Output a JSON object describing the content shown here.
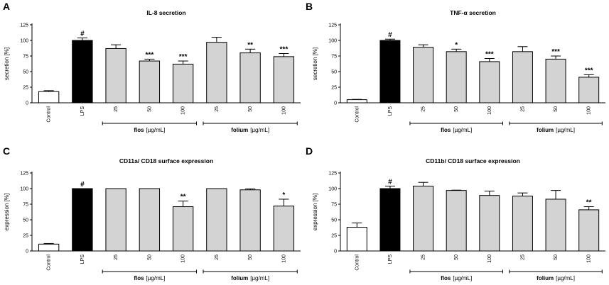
{
  "chart_data": [
    {
      "type": "bar",
      "panel_label": "A",
      "title": "IL-8 secretion",
      "ylabel": "secretion [%]",
      "ylim": [
        0,
        125
      ],
      "yticks": [
        "0",
        "25",
        "50",
        "75",
        "100",
        "125"
      ],
      "categories": [
        "Control",
        "LPS",
        "25",
        "50",
        "100",
        "25",
        "50",
        "100"
      ],
      "values": [
        18,
        100,
        87,
        67,
        62,
        97,
        80,
        74
      ],
      "errors": [
        1.5,
        4,
        6,
        3,
        5,
        8,
        6,
        5
      ],
      "colors": [
        "#ffffff",
        "#000000",
        "#d3d3d3",
        "#d3d3d3",
        "#d3d3d3",
        "#d3d3d3",
        "#d3d3d3",
        "#d3d3d3"
      ],
      "annotations": [
        "",
        "#",
        "",
        "***",
        "***",
        "",
        "**",
        "***"
      ],
      "groups": [
        {
          "name": "flos",
          "unit": "[µg/mL]"
        },
        {
          "name": "folium",
          "unit": "[µg/mL]"
        }
      ]
    },
    {
      "type": "bar",
      "panel_label": "B",
      "title": "TNF-α secretion",
      "ylabel": "secretion [%]",
      "ylim": [
        0,
        125
      ],
      "yticks": [
        "0",
        "25",
        "50",
        "75",
        "100",
        "125"
      ],
      "categories": [
        "Control",
        "LPS",
        "25",
        "50",
        "100",
        "25",
        "50",
        "100"
      ],
      "values": [
        5,
        100,
        89,
        82,
        66,
        82,
        70,
        41
      ],
      "errors": [
        0.5,
        2,
        4,
        4,
        5,
        8,
        5,
        4
      ],
      "colors": [
        "#ffffff",
        "#000000",
        "#d3d3d3",
        "#d3d3d3",
        "#d3d3d3",
        "#d3d3d3",
        "#d3d3d3",
        "#d3d3d3"
      ],
      "annotations": [
        "",
        "#",
        "",
        "*",
        "***",
        "",
        "***",
        "***"
      ],
      "groups": [
        {
          "name": "flos",
          "unit": "[µg/mL]"
        },
        {
          "name": "folium",
          "unit": "[µg/mL]"
        }
      ]
    },
    {
      "type": "bar",
      "panel_label": "C",
      "title": "CD11a/ CD18  surface expression",
      "ylabel": "expression [%]",
      "ylim": [
        0,
        125
      ],
      "yticks": [
        "0",
        "25",
        "50",
        "75",
        "100",
        "125"
      ],
      "categories": [
        "Control",
        "LPS",
        "25",
        "50",
        "100",
        "25",
        "50",
        "100"
      ],
      "values": [
        11,
        100,
        100,
        100,
        71,
        100,
        98,
        72
      ],
      "errors": [
        1,
        0,
        0,
        0,
        9,
        0,
        1.5,
        11
      ],
      "colors": [
        "#ffffff",
        "#000000",
        "#d3d3d3",
        "#d3d3d3",
        "#d3d3d3",
        "#d3d3d3",
        "#d3d3d3",
        "#d3d3d3"
      ],
      "annotations": [
        "",
        "#",
        "",
        "",
        "**",
        "",
        "",
        "*"
      ],
      "groups": [
        {
          "name": "flos",
          "unit": "[µg/mL]"
        },
        {
          "name": "folium",
          "unit": "[µg/mL]"
        }
      ]
    },
    {
      "type": "bar",
      "panel_label": "D",
      "title": "CD11b/ CD18  surface expression",
      "ylabel": "expression [%]",
      "ylim": [
        0,
        125
      ],
      "yticks": [
        "0",
        "25",
        "50",
        "75",
        "100",
        "125"
      ],
      "categories": [
        "Control",
        "LPS",
        "25",
        "50",
        "100",
        "25",
        "50",
        "100"
      ],
      "values": [
        38,
        100,
        104,
        97,
        89,
        88,
        83,
        66
      ],
      "errors": [
        7,
        4,
        6,
        0.5,
        7,
        5,
        14,
        5
      ],
      "colors": [
        "#ffffff",
        "#000000",
        "#d3d3d3",
        "#d3d3d3",
        "#d3d3d3",
        "#d3d3d3",
        "#d3d3d3",
        "#d3d3d3"
      ],
      "annotations": [
        "",
        "#",
        "",
        "",
        "",
        "",
        "",
        "**"
      ],
      "groups": [
        {
          "name": "flos",
          "unit": "[µg/mL]"
        },
        {
          "name": "folium",
          "unit": "[µg/mL]"
        }
      ]
    }
  ]
}
